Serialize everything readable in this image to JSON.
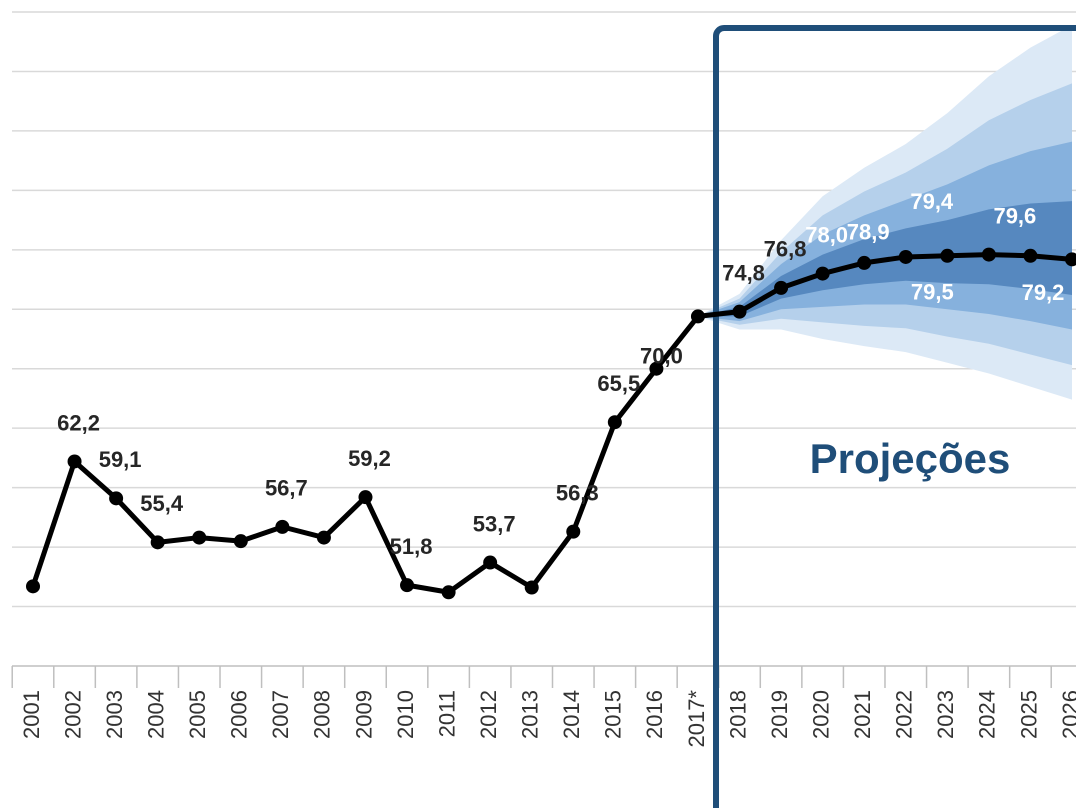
{
  "chart_data": {
    "type": "line",
    "categories": [
      "2001",
      "2002",
      "2003",
      "2004",
      "2005",
      "2006",
      "2007",
      "2008",
      "2009",
      "2010",
      "2011",
      "2012",
      "2013",
      "2014",
      "2015",
      "2016",
      "2017*",
      "2018",
      "2019",
      "2020",
      "2021",
      "2022",
      "2023",
      "2024",
      "2025",
      "2026"
    ],
    "series": [
      {
        "color": "#000000",
        "values": [
          51.7,
          62.2,
          59.1,
          55.4,
          55.8,
          55.5,
          56.7,
          55.8,
          59.2,
          51.8,
          51.2,
          53.7,
          51.6,
          56.3,
          65.5,
          70.0,
          74.4,
          74.8,
          76.8,
          78.0,
          78.9,
          79.4,
          79.5,
          79.6,
          79.5,
          79.2
        ],
        "value_labels": [
          null,
          "62,2",
          "59,1",
          "55,4",
          null,
          null,
          "56,7",
          null,
          "59,2",
          "51,8",
          null,
          "53,7",
          null,
          "56,3",
          "65,5",
          "70,0",
          null,
          "74,8",
          "76,8",
          "78,0",
          "78,9",
          "79,4",
          "79,5",
          "79,6",
          null,
          "79,2"
        ]
      }
    ],
    "fan": [
      {
        "color": "#dce9f6",
        "upper": [
          null,
          null,
          null,
          null,
          null,
          null,
          null,
          null,
          null,
          null,
          null,
          null,
          null,
          null,
          null,
          null,
          74.4,
          76.3,
          80.8,
          84.5,
          86.9,
          88.9,
          91.5,
          94.6,
          97.0,
          98.9
        ],
        "lower": [
          null,
          null,
          null,
          null,
          null,
          null,
          null,
          null,
          null,
          null,
          null,
          null,
          null,
          null,
          null,
          null,
          74.4,
          73.3,
          73.3,
          72.5,
          71.9,
          71.4,
          70.5,
          69.6,
          68.5,
          67.4
        ]
      },
      {
        "color": "#b5d0eb",
        "upper": [
          null,
          null,
          null,
          null,
          null,
          null,
          null,
          null,
          null,
          null,
          null,
          null,
          null,
          null,
          null,
          null,
          74.4,
          75.9,
          79.8,
          82.9,
          84.9,
          86.5,
          88.5,
          90.9,
          92.6,
          94.0
        ],
        "lower": [
          null,
          null,
          null,
          null,
          null,
          null,
          null,
          null,
          null,
          null,
          null,
          null,
          null,
          null,
          null,
          null,
          74.4,
          73.7,
          74.2,
          73.9,
          73.6,
          73.4,
          72.7,
          72.1,
          71.2,
          70.3
        ]
      },
      {
        "color": "#86b1dd",
        "upper": [
          null,
          null,
          null,
          null,
          null,
          null,
          null,
          null,
          null,
          null,
          null,
          null,
          null,
          null,
          null,
          null,
          74.4,
          75.6,
          78.8,
          81.3,
          82.9,
          84.2,
          85.5,
          87.1,
          88.3,
          89.1
        ],
        "lower": [
          null,
          null,
          null,
          null,
          null,
          null,
          null,
          null,
          null,
          null,
          null,
          null,
          null,
          null,
          null,
          null,
          74.4,
          74.0,
          75.0,
          75.2,
          75.4,
          75.4,
          75.0,
          74.6,
          74.0,
          73.3
        ]
      },
      {
        "color": "#5688bf",
        "upper": [
          null,
          null,
          null,
          null,
          null,
          null,
          null,
          null,
          null,
          null,
          null,
          null,
          null,
          null,
          null,
          null,
          74.4,
          75.2,
          77.8,
          79.6,
          80.9,
          81.8,
          82.5,
          83.4,
          83.9,
          84.1
        ],
        "lower": [
          null,
          null,
          null,
          null,
          null,
          null,
          null,
          null,
          null,
          null,
          null,
          null,
          null,
          null,
          null,
          null,
          74.4,
          74.4,
          75.9,
          76.6,
          77.1,
          77.4,
          77.2,
          77.1,
          76.7,
          76.2
        ]
      }
    ],
    "ylim": [
      45,
      100
    ],
    "yticks": [
      45,
      50,
      55,
      60,
      65,
      70,
      75,
      80,
      85,
      90,
      95,
      100
    ],
    "grid": true,
    "annotation": "Projeções"
  }
}
